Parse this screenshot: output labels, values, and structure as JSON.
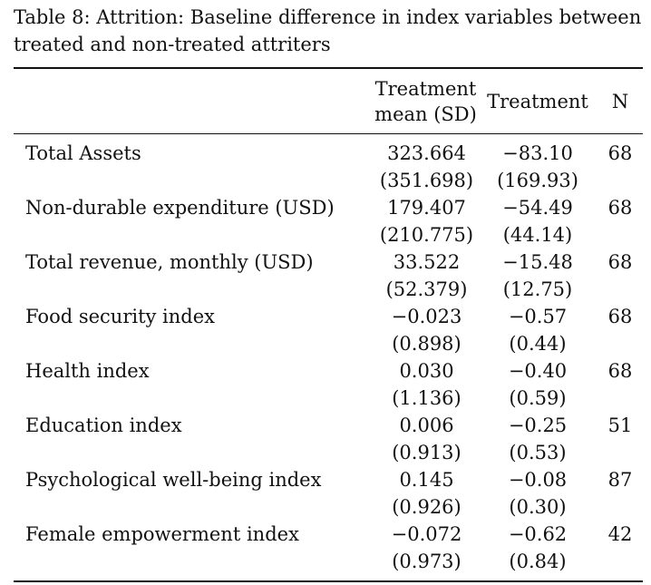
{
  "caption": "Table 8: Attrition: Baseline difference in index variables between\ntreated and non-treated attriters",
  "header": {
    "col1": "Treatment\nmean (SD)",
    "col2": "Treatment",
    "col3": "N"
  },
  "rows": [
    {
      "label": "Total Assets",
      "mean": "323.664",
      "sd": "(351.698)",
      "treatment": "−83.10",
      "se": "(169.93)",
      "n": "68"
    },
    {
      "label": "Non-durable expenditure (USD)",
      "mean": "179.407",
      "sd": "(210.775)",
      "treatment": "−54.49",
      "se": "(44.14)",
      "n": "68"
    },
    {
      "label": "Total revenue, monthly (USD)",
      "mean": "33.522",
      "sd": "(52.379)",
      "treatment": "−15.48",
      "se": "(12.75)",
      "n": "68"
    },
    {
      "label": "Food security index",
      "mean": "−0.023",
      "sd": "(0.898)",
      "treatment": "−0.57",
      "se": "(0.44)",
      "n": "68"
    },
    {
      "label": "Health index",
      "mean": "0.030",
      "sd": "(1.136)",
      "treatment": "−0.40",
      "se": "(0.59)",
      "n": "68"
    },
    {
      "label": "Education index",
      "mean": "0.006",
      "sd": "(0.913)",
      "treatment": "−0.25",
      "se": "(0.53)",
      "n": "51"
    },
    {
      "label": "Psychological well-being index",
      "mean": "0.145",
      "sd": "(0.926)",
      "treatment": "−0.08",
      "se": "(0.30)",
      "n": "87"
    },
    {
      "label": "Female empowerment index",
      "mean": "−0.072",
      "sd": "(0.973)",
      "treatment": "−0.62",
      "se": "(0.84)",
      "n": "42"
    }
  ]
}
